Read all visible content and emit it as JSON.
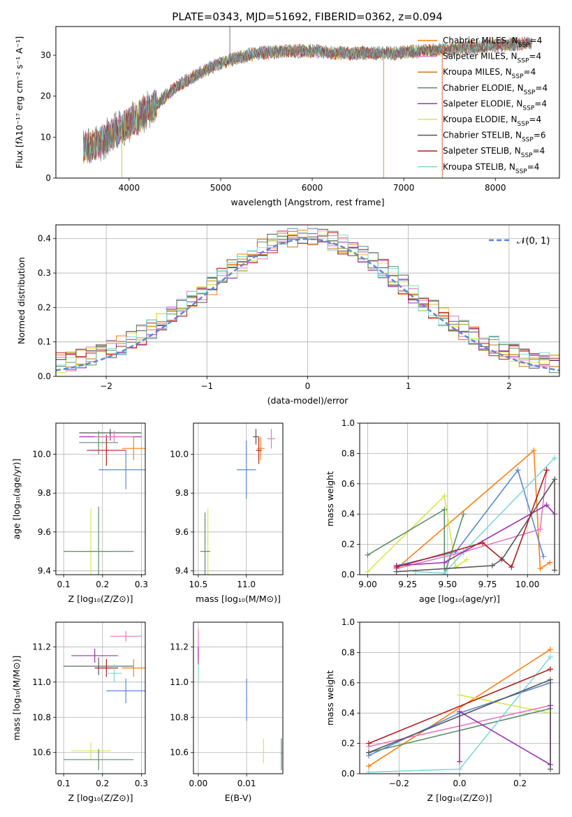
{
  "title": "PLATE=0343, MJD=51692, FIBERID=0362, z=0.094",
  "legend_spectrum": [
    {
      "label": "Chabrier MILES, N",
      "sub": "SSP",
      "tail": "=4",
      "color": "#ff7f0e"
    },
    {
      "label": "Salpeter MILES, N",
      "sub": "SSP",
      "tail": "=4",
      "color": "#e377c2"
    },
    {
      "label": "Kroupa MILES, N",
      "sub": "SSP",
      "tail": "=4",
      "color": "#c97d0e"
    },
    {
      "label": "Chabrier ELODIE, N",
      "sub": "SSP",
      "tail": "=4",
      "color": "#5b8f6a"
    },
    {
      "label": "Salpeter ELODIE, N",
      "sub": "SSP",
      "tail": "=4",
      "color": "#9b30b0"
    },
    {
      "label": "Kroupa ELODIE, N",
      "sub": "SSP",
      "tail": "=4",
      "color": "#d6e84a"
    },
    {
      "label": "Chabrier STELIB, N",
      "sub": "SSP",
      "tail": "=6",
      "color": "#555555"
    },
    {
      "label": "Salpeter STELIB, N",
      "sub": "SSP",
      "tail": "=4",
      "color": "#b01c1c"
    },
    {
      "label": "Kroupa STELIB, N",
      "sub": "SSP",
      "tail": "=4",
      "color": "#7fd8d8"
    }
  ],
  "legend_hist": "𝒩(0, 1)",
  "chart_data": [
    {
      "id": "spectrum",
      "type": "line",
      "xlabel": "wavelength [Angstrom, rest frame]",
      "ylabel": "Flux [fλ10⁻¹⁷ erg cm⁻² s⁻¹ A⁻¹]",
      "xlim": [
        3200,
        8700
      ],
      "ylim": [
        0,
        37
      ],
      "xticks": [
        4000,
        5000,
        6000,
        7000,
        8000
      ],
      "yticks": [
        0,
        10,
        20,
        30
      ],
      "continuum_x": [
        3500,
        3700,
        3900,
        4100,
        4300,
        4500,
        4800,
        5000,
        5200,
        5400,
        5700,
        6000,
        6300,
        6600,
        6900,
        7200,
        7500,
        7800,
        8100,
        8400
      ],
      "continuum_y": [
        7,
        9,
        12,
        15,
        18,
        22,
        26,
        28,
        29.5,
        30.5,
        31,
        31,
        30.5,
        30.5,
        30.5,
        31,
        31.5,
        32,
        32.5,
        33
      ],
      "spikes": [
        {
          "x": 3920,
          "y": 0
        },
        {
          "x": 5100,
          "y": 37
        },
        {
          "x": 6780,
          "y": 0
        },
        {
          "x": 7420,
          "y": 0
        }
      ]
    },
    {
      "id": "residual_hist",
      "type": "line",
      "xlabel": "(data-model)/error",
      "ylabel": "Normed distribution",
      "xlim": [
        -2.5,
        2.5
      ],
      "ylim": [
        0,
        0.44
      ],
      "xticks": [
        -2,
        -1,
        0,
        1,
        2
      ],
      "yticks": [
        0.0,
        0.1,
        0.2,
        0.3,
        0.4
      ],
      "gaussian": {
        "mu": 0,
        "sigma": 1,
        "color": "#5b87d6",
        "dash": true
      }
    },
    {
      "id": "age_vs_Z",
      "type": "scatter",
      "xlabel": "Z [log₁₀(Z/Z⊙)]",
      "ylabel": "age  [log₁₀(age/yr)]",
      "xlim": [
        0.08,
        0.31
      ],
      "ylim": [
        9.38,
        10.16
      ],
      "xticks": [
        0.1,
        0.2,
        0.3
      ],
      "yticks": [
        9.4,
        9.6,
        9.8,
        10.0
      ],
      "points": [
        {
          "x": 0.22,
          "y": 10.09,
          "xerr": 0.08,
          "yerr": 0.02,
          "color": "#9b30b0"
        },
        {
          "x": 0.22,
          "y": 10.11,
          "xerr": 0.08,
          "yerr": 0.02,
          "color": "#555555"
        },
        {
          "x": 0.28,
          "y": 10.03,
          "xerr": 0.03,
          "yerr": 0.06,
          "color": "#ff7f0e"
        },
        {
          "x": 0.21,
          "y": 10.02,
          "xerr": 0.05,
          "yerr": 0.08,
          "color": "#b01c1c"
        },
        {
          "x": 0.19,
          "y": 10.06,
          "xerr": 0.05,
          "yerr": 0.06,
          "color": "#5b8f6a"
        },
        {
          "x": 0.23,
          "y": 10.09,
          "xerr": 0.05,
          "yerr": 0.03,
          "color": "#e377c2"
        },
        {
          "x": 0.26,
          "y": 9.92,
          "xerr": 0.07,
          "yerr": 0.1,
          "color": "#5b87d6"
        },
        {
          "x": 0.17,
          "y": 9.5,
          "xerr": 0.05,
          "yerr": 0.22,
          "color": "#d6e84a"
        },
        {
          "x": 0.19,
          "y": 9.5,
          "xerr": 0.09,
          "yerr": 0.23,
          "color": "#5b8f6a"
        }
      ]
    },
    {
      "id": "age_vs_mass",
      "type": "scatter",
      "xlabel": "mass [log₁₀(M/M⊙)]",
      "ylabel": "",
      "xlim": [
        10.45,
        11.38
      ],
      "ylim": [
        9.38,
        10.16
      ],
      "xticks": [
        10.5,
        11.0
      ],
      "yticks": [
        9.4,
        9.6,
        9.8,
        10.0
      ],
      "points": [
        {
          "x": 11.1,
          "y": 10.09,
          "xerr": 0.03,
          "yerr": 0.04,
          "color": "#555555"
        },
        {
          "x": 11.26,
          "y": 10.08,
          "xerr": 0.04,
          "yerr": 0.05,
          "color": "#e377c2"
        },
        {
          "x": 11.15,
          "y": 10.03,
          "xerr": 0.04,
          "yerr": 0.06,
          "color": "#ff7f0e"
        },
        {
          "x": 11.13,
          "y": 10.02,
          "xerr": 0.03,
          "yerr": 0.07,
          "color": "#b01c1c"
        },
        {
          "x": 11.0,
          "y": 9.92,
          "xerr": 0.1,
          "yerr": 0.15,
          "color": "#5b87d6"
        },
        {
          "x": 10.6,
          "y": 9.5,
          "xerr": 0.03,
          "yerr": 0.22,
          "color": "#d6e84a"
        },
        {
          "x": 10.57,
          "y": 9.5,
          "xerr": 0.05,
          "yerr": 0.2,
          "color": "#5b8f6a"
        }
      ]
    },
    {
      "id": "weight_vs_age",
      "type": "line",
      "xlabel": "age  [log₁₀(age/yr)]",
      "ylabel": "mass weight",
      "xlim": [
        8.95,
        10.2
      ],
      "ylim": [
        0,
        1
      ],
      "xticks": [
        9.0,
        9.25,
        9.5,
        9.75,
        10.0
      ],
      "yticks": [
        0.0,
        0.2,
        0.4,
        0.6,
        0.8,
        1.0
      ],
      "series": [
        {
          "color": "#ff7f0e",
          "x": [
            9.18,
            10.04,
            10.08,
            10.14
          ],
          "y": [
            0.04,
            0.82,
            0.04,
            0.08
          ]
        },
        {
          "color": "#5b87d6",
          "x": [
            9.18,
            9.55,
            9.94,
            10.1
          ],
          "y": [
            0.06,
            0.15,
            0.69,
            0.12
          ]
        },
        {
          "color": "#d6e84a",
          "x": [
            9.0,
            9.48,
            9.55,
            9.62
          ],
          "y": [
            0.02,
            0.52,
            0.05,
            0.1
          ]
        },
        {
          "color": "#5b8f6a",
          "x": [
            9.0,
            9.48,
            9.48,
            9.6
          ],
          "y": [
            0.13,
            0.43,
            0.0,
            0.4
          ]
        },
        {
          "color": "#7fd8d8",
          "x": [
            9.3,
            9.48,
            9.6,
            10.17
          ],
          "y": [
            0.02,
            0.01,
            0.15,
            0.77
          ]
        },
        {
          "color": "#e377c2",
          "x": [
            9.18,
            9.6,
            10.08,
            10.12
          ],
          "y": [
            0.04,
            0.15,
            0.3,
            0.69
          ]
        },
        {
          "color": "#9b30b0",
          "x": [
            9.18,
            9.48,
            10.12,
            10.17
          ],
          "y": [
            0.06,
            0.08,
            0.46,
            0.4
          ]
        },
        {
          "color": "#555555",
          "x": [
            9.18,
            9.78,
            9.84,
            10.17,
            10.17
          ],
          "y": [
            0.02,
            0.06,
            0.1,
            0.63,
            0.03
          ]
        },
        {
          "color": "#b01c1c",
          "x": [
            9.18,
            9.72,
            9.9,
            10.12
          ],
          "y": [
            0.05,
            0.21,
            0.05,
            0.69
          ]
        }
      ]
    },
    {
      "id": "mass_vs_Z",
      "type": "scatter",
      "xlabel": "Z [log₁₀(Z/Z⊙)]",
      "ylabel": "mass [log₁₀(M/M⊙)]",
      "xlim": [
        0.08,
        0.31
      ],
      "ylim": [
        10.48,
        11.34
      ],
      "xticks": [
        0.1,
        0.2,
        0.3
      ],
      "yticks": [
        10.6,
        10.8,
        11.0,
        11.2
      ],
      "points": [
        {
          "x": 0.26,
          "y": 11.26,
          "xerr": 0.04,
          "yerr": 0.03,
          "color": "#e377c2"
        },
        {
          "x": 0.18,
          "y": 11.15,
          "xerr": 0.06,
          "yerr": 0.04,
          "color": "#9b30b0"
        },
        {
          "x": 0.19,
          "y": 11.09,
          "xerr": 0.09,
          "yerr": 0.05,
          "color": "#555555"
        },
        {
          "x": 0.28,
          "y": 11.08,
          "xerr": 0.03,
          "yerr": 0.05,
          "color": "#ff7f0e"
        },
        {
          "x": 0.21,
          "y": 11.08,
          "xerr": 0.03,
          "yerr": 0.05,
          "color": "#b01c1c"
        },
        {
          "x": 0.23,
          "y": 11.05,
          "xerr": 0.02,
          "yerr": 0.05,
          "color": "#7fd8d8"
        },
        {
          "x": 0.26,
          "y": 10.95,
          "xerr": 0.05,
          "yerr": 0.07,
          "color": "#5b87d6"
        },
        {
          "x": 0.17,
          "y": 10.61,
          "xerr": 0.05,
          "yerr": 0.05,
          "color": "#d6e84a"
        },
        {
          "x": 0.19,
          "y": 10.56,
          "xerr": 0.09,
          "yerr": 0.06,
          "color": "#5b8f6a"
        }
      ]
    },
    {
      "id": "mass_vs_EBV",
      "type": "scatter",
      "xlabel": "E(B-V)",
      "ylabel": "",
      "xlim": [
        -0.001,
        0.0175
      ],
      "ylim": [
        10.48,
        11.34
      ],
      "xticks": [
        0.0,
        0.01
      ],
      "yticks": [
        10.6,
        10.8,
        11.0,
        11.2
      ],
      "points": [
        {
          "x": 0.0,
          "y": 11.22,
          "xerr": 0.0001,
          "yerr": 0.08,
          "color": "#e377c2"
        },
        {
          "x": 0.0,
          "y": 11.15,
          "xerr": 0.0001,
          "yerr": 0.05,
          "color": "#9b30b0"
        },
        {
          "x": 0.0,
          "y": 11.05,
          "xerr": 0.0001,
          "yerr": 0.05,
          "color": "#7fd8d8"
        },
        {
          "x": 0.01,
          "y": 10.9,
          "xerr": 0.0001,
          "yerr": 0.12,
          "color": "#5b87d6"
        },
        {
          "x": 0.0135,
          "y": 10.61,
          "xerr": 0.0001,
          "yerr": 0.07,
          "color": "#d6e84a"
        },
        {
          "x": 0.0172,
          "y": 10.59,
          "xerr": 0.0001,
          "yerr": 0.09,
          "color": "#5b8f6a"
        }
      ]
    },
    {
      "id": "weight_vs_Z",
      "type": "line",
      "xlabel": "Z [log₁₀(Z/Z⊙)]",
      "ylabel": "mass weight",
      "xlim": [
        -0.33,
        0.33
      ],
      "ylim": [
        0,
        1
      ],
      "xticks": [
        -0.2,
        0.0,
        0.2
      ],
      "yticks": [
        0.0,
        0.2,
        0.4,
        0.6,
        0.8,
        1.0
      ],
      "series": [
        {
          "color": "#ff7f0e",
          "x": [
            -0.3,
            0.3
          ],
          "y": [
            0.05,
            0.82
          ]
        },
        {
          "color": "#5b87d6",
          "x": [
            -0.3,
            0.0,
            0.3
          ],
          "y": [
            0.12,
            0.4,
            0.6
          ]
        },
        {
          "color": "#d6e84a",
          "x": [
            0.0,
            0.3
          ],
          "y": [
            0.52,
            0.4
          ]
        },
        {
          "color": "#5b8f6a",
          "x": [
            -0.3,
            0.3
          ],
          "y": [
            0.14,
            0.43
          ]
        },
        {
          "color": "#7fd8d8",
          "x": [
            -0.3,
            0.0,
            0.3
          ],
          "y": [
            0.01,
            0.03,
            0.77
          ]
        },
        {
          "color": "#e377c2",
          "x": [
            -0.3,
            0.3
          ],
          "y": [
            0.18,
            0.45
          ]
        },
        {
          "color": "#9b30b0",
          "x": [
            0.0,
            0.0,
            0.3,
            0.3
          ],
          "y": [
            0.08,
            0.41,
            0.06,
            0.45
          ]
        },
        {
          "color": "#555555",
          "x": [
            -0.3,
            0.3,
            0.3
          ],
          "y": [
            0.14,
            0.62,
            0.03
          ]
        },
        {
          "color": "#b01c1c",
          "x": [
            -0.3,
            0.3
          ],
          "y": [
            0.2,
            0.69
          ]
        }
      ]
    }
  ]
}
